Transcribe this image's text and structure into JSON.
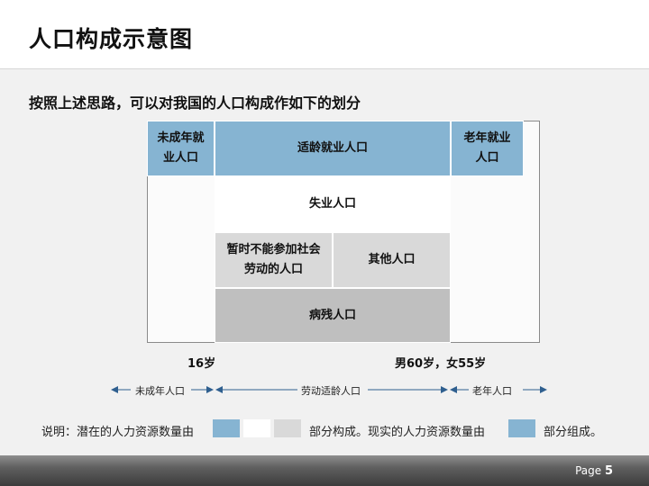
{
  "header": {
    "title": "人口构成示意图"
  },
  "content": {
    "subtitle": "按照上述思路，可以对我国的人口构成作如下的划分",
    "cells": {
      "minor_working": "未成年就业人口",
      "working_age_employed": "适龄就业人口",
      "elderly_working": "老年就业人口",
      "unemployed": "失业人口",
      "temp_unable": "暂时不能参加社会劳动的人口",
      "other": "其他人口",
      "sick_disabled": "病残人口"
    },
    "age_marks": {
      "sixteen": "16岁",
      "retire": "男60岁，女55岁"
    },
    "axis": {
      "minor": "未成年人口",
      "working": "劳动适龄人口",
      "elderly": "老年人口"
    },
    "note": {
      "prefix": "说明：潜在的人力资源数量由",
      "middle": "部分构成。现实的人力资源数量由",
      "suffix": "部分组成。"
    },
    "colors": {
      "blue": "#86b4d2",
      "white": "#ffffff",
      "light_gray": "#d9d9d9",
      "mid_gray": "#bfbfbf",
      "axis_line": "#2f5f8f"
    }
  },
  "footer": {
    "page_label": "Page",
    "page_number": "5"
  }
}
